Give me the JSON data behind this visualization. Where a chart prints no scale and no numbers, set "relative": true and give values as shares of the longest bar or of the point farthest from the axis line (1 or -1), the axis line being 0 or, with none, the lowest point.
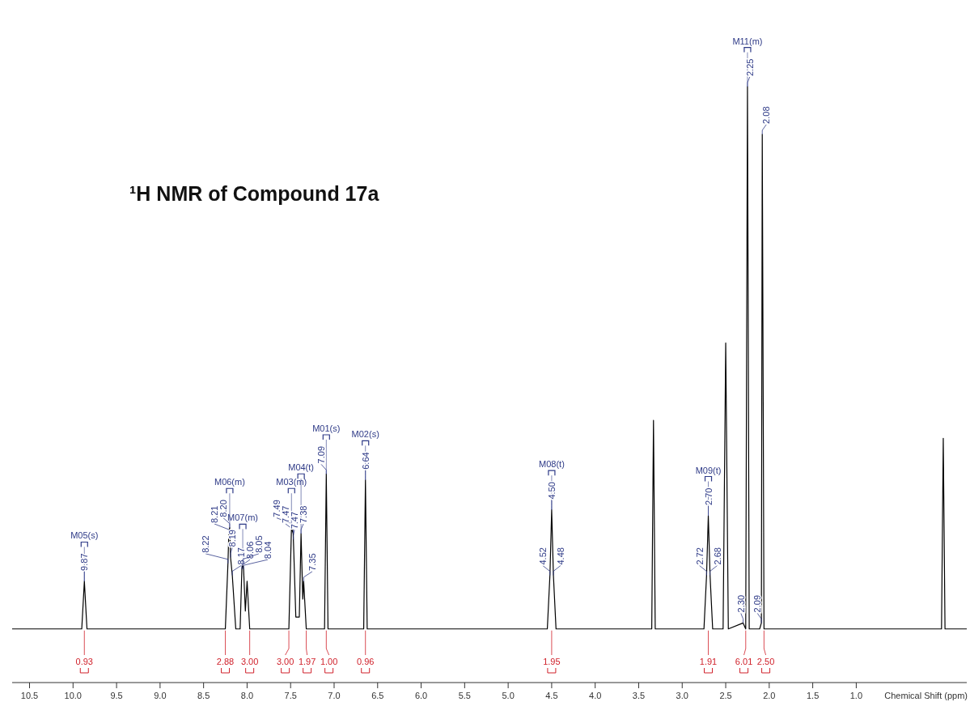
{
  "chart_data": {
    "type": "line",
    "title": "¹H NMR of Compound 17a",
    "xlabel": "Chemical Shift (ppm)",
    "relative": true,
    "xlim": [
      10.7,
      -0.27
    ],
    "xticks": [
      10.5,
      {
        "value": 10,
        "label": "10.0"
      },
      9.5,
      {
        "value": 9,
        "label": "9.0"
      },
      8.5,
      {
        "value": 8,
        "label": "8.0"
      },
      7.5,
      {
        "value": 7,
        "label": "7.0"
      },
      6.5,
      {
        "value": 6,
        "label": "6.0"
      },
      5.5,
      {
        "value": 5,
        "label": "5.0"
      },
      4.5,
      {
        "value": 4,
        "label": "4.0"
      },
      3.5,
      {
        "value": 3,
        "label": "3.0"
      },
      2.5,
      {
        "value": 2,
        "label": "2.0"
      },
      1.5,
      {
        "value": 1,
        "label": "1.0"
      }
    ],
    "series": [
      {
        "color": "#000000",
        "x": [
          10.7,
          9.9,
          9.87,
          9.84,
          8.25,
          8.22,
          8.21,
          8.2,
          8.19,
          8.17,
          8.13,
          8.08,
          8.06,
          8.05,
          8.04,
          8.02,
          8.0,
          7.97,
          7.52,
          7.49,
          7.47,
          7.44,
          7.4,
          7.38,
          7.36,
          7.35,
          7.32,
          7.11,
          7.09,
          7.07,
          6.66,
          6.64,
          6.62,
          4.55,
          4.52,
          4.5,
          4.48,
          4.45,
          3.35,
          3.33,
          3.31,
          2.75,
          2.72,
          2.7,
          2.68,
          2.65,
          2.53,
          2.5,
          2.47,
          2.3,
          2.27,
          2.25,
          2.23,
          2.11,
          2.09,
          2.08,
          2.06,
          0.02,
          0.0,
          -0.02,
          -0.27
        ],
        "values": [
          0.09,
          0.09,
          0.17,
          0.09,
          0.09,
          0.2,
          0.25,
          0.26,
          0.21,
          0.18,
          0.09,
          0.09,
          0.19,
          0.2,
          0.19,
          0.12,
          0.17,
          0.09,
          0.09,
          0.26,
          0.25,
          0.11,
          0.11,
          0.25,
          0.14,
          0.17,
          0.09,
          0.09,
          0.35,
          0.09,
          0.09,
          0.34,
          0.09,
          0.09,
          0.18,
          0.29,
          0.18,
          0.09,
          0.09,
          0.44,
          0.09,
          0.09,
          0.18,
          0.28,
          0.18,
          0.09,
          0.09,
          0.57,
          0.09,
          0.1,
          0.09,
          1,
          0.09,
          0.09,
          0.1,
          0.92,
          0.09,
          0.09,
          0.41,
          0.09,
          0.09
        ]
      }
    ],
    "annotations": [
      {
        "text": "9.87",
        "x": 9.87,
        "y": 0.17
      },
      {
        "text": "8.22",
        "x": 8.22,
        "y": 0.2
      },
      {
        "text": "8.21",
        "x": 8.21,
        "y": 0.25
      },
      {
        "text": "8.20",
        "x": 8.2,
        "y": 0.26
      },
      {
        "text": "8.19",
        "x": 8.19,
        "y": 0.21
      },
      {
        "text": "8.17",
        "x": 8.17,
        "y": 0.18
      },
      {
        "text": "8.06",
        "x": 8.06,
        "y": 0.19
      },
      {
        "text": "8.05",
        "x": 8.05,
        "y": 0.2
      },
      {
        "text": "8.04",
        "x": 8.04,
        "y": 0.19
      },
      {
        "text": "7.49",
        "x": 7.49,
        "y": 0.26
      },
      {
        "text": "7.47",
        "x": 7.47,
        "y": 0.25
      },
      {
        "text": "7.47",
        "x": 7.468,
        "y": 0.24
      },
      {
        "text": "7.38",
        "x": 7.38,
        "y": 0.25
      },
      {
        "text": "7.35",
        "x": 7.35,
        "y": 0.17
      },
      {
        "text": "7.09",
        "x": 7.09,
        "y": 0.35
      },
      {
        "text": "6.64",
        "x": 6.64,
        "y": 0.34
      },
      {
        "text": "4.52",
        "x": 4.52,
        "y": 0.18
      },
      {
        "text": "4.50",
        "x": 4.5,
        "y": 0.29
      },
      {
        "text": "4.48",
        "x": 4.48,
        "y": 0.18
      },
      {
        "text": "2.72",
        "x": 2.72,
        "y": 0.18
      },
      {
        "text": "2.70",
        "x": 2.7,
        "y": 0.28
      },
      {
        "text": "2.68",
        "x": 2.68,
        "y": 0.18
      },
      {
        "text": "2.30",
        "x": 2.3,
        "y": 0.1
      },
      {
        "text": "2.25",
        "x": 2.25,
        "y": 1
      },
      {
        "text": "2.09",
        "x": 2.09,
        "y": 0.1
      },
      {
        "text": "2.08",
        "x": 2.08,
        "y": 0.92
      },
      {
        "text": "M05(s)",
        "x": 9.87,
        "y": 0.17
      },
      {
        "text": "M06(m)",
        "x": 8.2,
        "y": 0.26
      },
      {
        "text": "M07(m)",
        "x": 8.05,
        "y": 0.2
      },
      {
        "text": "M03(m)",
        "x": 7.49,
        "y": 0.26
      },
      {
        "text": "M04(t)",
        "x": 7.38,
        "y": 0.25
      },
      {
        "text": "M01(s)",
        "x": 7.09,
        "y": 0.35
      },
      {
        "text": "M02(s)",
        "x": 6.64,
        "y": 0.34
      },
      {
        "text": "M08(t)",
        "x": 4.5,
        "y": 0.29
      },
      {
        "text": "M09(t)",
        "x": 2.7,
        "y": 0.28
      },
      {
        "text": "M11(m)",
        "x": 2.25,
        "y": 1
      },
      {
        "text": "0.93",
        "x": 9.87,
        "y": 0.09
      },
      {
        "text": "2.88",
        "x": 8.25,
        "y": 0.09
      },
      {
        "text": "3.00",
        "x": 7.97,
        "y": 0.09
      },
      {
        "text": "3.00",
        "x": 7.52,
        "y": 0.09
      },
      {
        "text": "1.97",
        "x": 7.32,
        "y": 0.09
      },
      {
        "text": "1.00",
        "x": 7.09,
        "y": 0.09
      },
      {
        "text": "0.96",
        "x": 6.64,
        "y": 0.09
      },
      {
        "text": "1.95",
        "x": 4.5,
        "y": 0.09
      },
      {
        "text": "1.91",
        "x": 2.7,
        "y": 0.09
      },
      {
        "text": "6.01",
        "x": 2.27,
        "y": 0.09
      },
      {
        "text": "2.50",
        "x": 2.06,
        "y": 0.09
      }
    ]
  }
}
